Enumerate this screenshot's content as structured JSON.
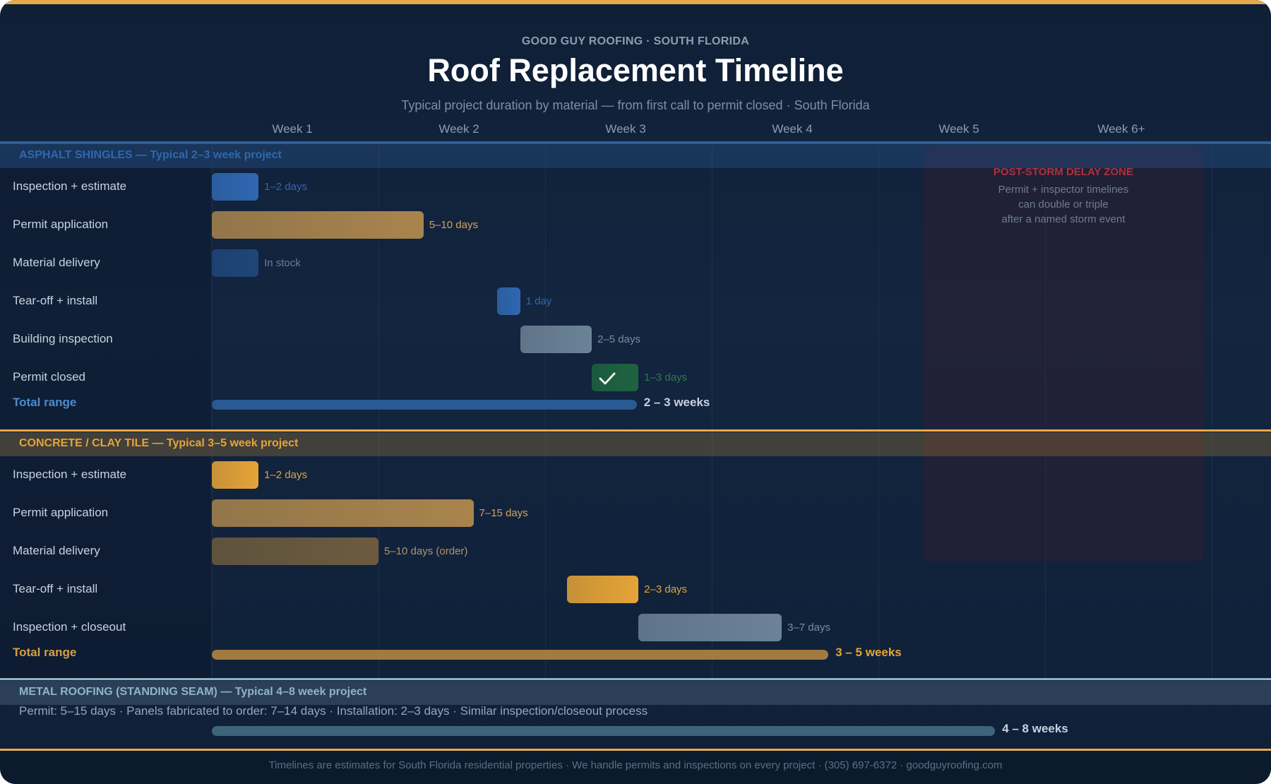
{
  "header": {
    "eyebrow": "GOOD GUY ROOFING · SOUTH FLORIDA",
    "title": "Roof Replacement Timeline",
    "subtitle": "Typical project duration by material — from first call to permit closed · South Florida"
  },
  "chart_data": {
    "type": "gantt",
    "x_axis": {
      "unit": "weeks",
      "ticks": [
        "Week 1",
        "Week 2",
        "Week 3",
        "Week 4",
        "Week 5",
        "Week 6+"
      ],
      "range": [
        0,
        6
      ]
    },
    "annotation": {
      "title": "POST-STORM DELAY ZONE",
      "lines": [
        "Permit + inspector timelines",
        "can double or triple",
        "after a named storm event"
      ],
      "start": 4.27,
      "end": 5.95
    },
    "groups": [
      {
        "header": "ASPHALT SHINGLES — Typical 2–3 week project",
        "color": "#2f67b0",
        "tasks": [
          {
            "label": "Inspection + estimate",
            "start": 0.0,
            "end": 0.28,
            "duration": "1–2 days",
            "color": "#2f67b0"
          },
          {
            "label": "Permit application",
            "start": 0.0,
            "end": 1.27,
            "duration": "5–10 days",
            "color": "#a9844c"
          },
          {
            "label": "Material delivery",
            "start": 0.0,
            "end": 0.28,
            "duration": "In stock",
            "color": "#1f4679"
          },
          {
            "label": "Tear-off + install",
            "start": 1.71,
            "end": 1.85,
            "duration": "1 day",
            "color": "#2f67b0"
          },
          {
            "label": "Building inspection",
            "start": 1.85,
            "end": 2.28,
            "duration": "2–5 days",
            "color": "#6c8296"
          },
          {
            "label": "Permit closed",
            "start": 2.28,
            "end": 2.56,
            "duration": "1–3 days",
            "color": "#1e6340"
          }
        ],
        "total": {
          "label": "Total range",
          "start": 0.0,
          "end": 2.55,
          "value": "2 – 3 weeks"
        }
      },
      {
        "header": "CONCRETE / CLAY TILE — Typical 3–5 week project",
        "color": "#e6a437",
        "tasks": [
          {
            "label": "Inspection + estimate",
            "start": 0.0,
            "end": 0.28,
            "duration": "1–2 days",
            "color": "#e6a437"
          },
          {
            "label": "Permit application",
            "start": 0.0,
            "end": 1.57,
            "duration": "7–15 days",
            "color": "#a9844c"
          },
          {
            "label": "Material delivery",
            "start": 0.0,
            "end": 1.0,
            "duration": "5–10 days (order)",
            "color": "#6c5b3f"
          },
          {
            "label": "Tear-off + install",
            "start": 2.13,
            "end": 2.56,
            "duration": "2–3 days",
            "color": "#e6a437"
          },
          {
            "label": "Inspection + closeout",
            "start": 2.56,
            "end": 3.42,
            "duration": "3–7 days",
            "color": "#6c8296"
          }
        ],
        "total": {
          "label": "Total range",
          "start": 0.0,
          "end": 3.7,
          "value": "3 – 5 weeks"
        }
      },
      {
        "header": "METAL ROOFING (STANDING SEAM) — Typical 4–8 week project",
        "color": "#8fb3c7",
        "note": "Permit: 5–15 days · Panels fabricated to order: 7–14 days · Installation: 2–3 days · Similar inspection/closeout process",
        "total": {
          "start": 0.0,
          "end": 4.7,
          "value": "4 – 8 weeks"
        }
      }
    ]
  },
  "footer": {
    "text": "Timelines are estimates for South Florida residential properties · We handle permits and inspections on every project · (305) 697-6372 · goodguyroofing.com"
  },
  "icons": {
    "check": "check-icon"
  }
}
